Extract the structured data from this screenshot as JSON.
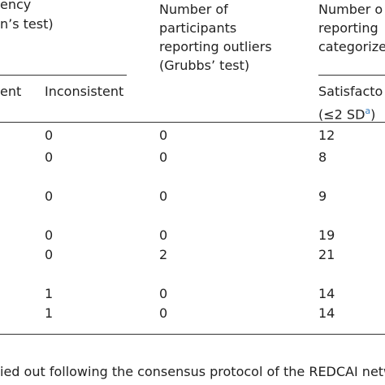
{
  "header": {
    "col1_line1": "ency",
    "col1_line2": "n’s test)",
    "col2_lines": [
      "Number of",
      "participants",
      "reporting outliers",
      "(Grubbs’ test)"
    ],
    "col3_lines": [
      "Number o",
      "reporting",
      "categorize"
    ],
    "sub_consistent": "ent",
    "sub_inconsistent": "Inconsistent",
    "sub_satisfactory": "Satisfacto",
    "sub_sd_open": "(≤2 SD",
    "sub_sd_note": "a",
    "sub_sd_close": ")"
  },
  "table": {
    "rows": [
      [
        "0",
        "0",
        "12"
      ],
      [
        "0",
        "0",
        "8"
      ],
      [
        "0",
        "0",
        "9"
      ],
      [
        "0",
        "0",
        "19"
      ],
      [
        "0",
        "2",
        "21"
      ],
      [
        "1",
        "0",
        "14"
      ],
      [
        "1",
        "0",
        "14"
      ]
    ]
  },
  "footer": {
    "text": "ied out following the consensus protocol of the REDCAI netw"
  }
}
